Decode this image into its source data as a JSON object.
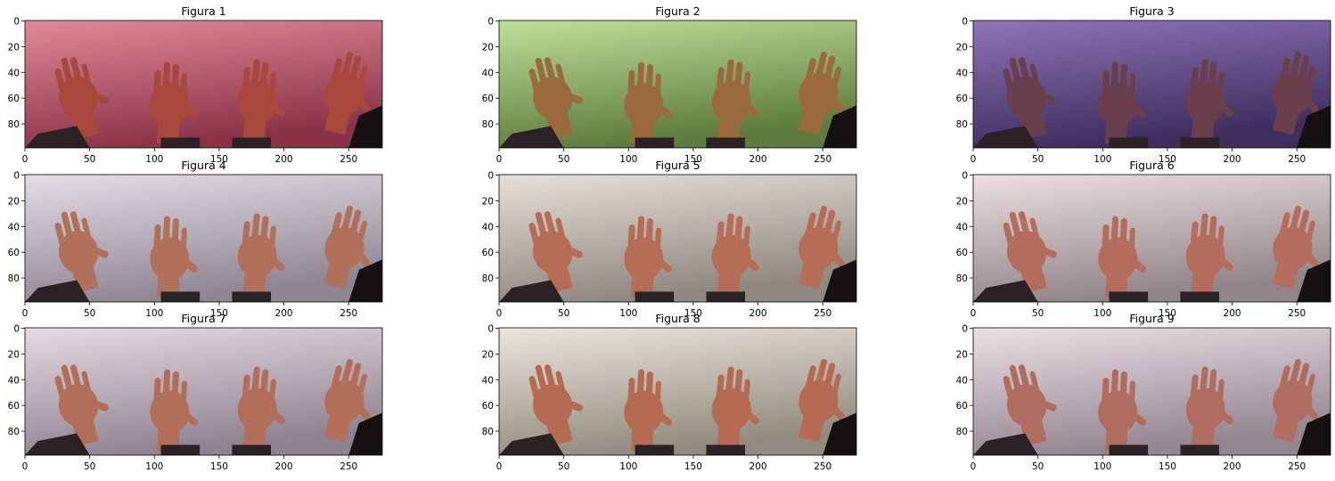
{
  "figure": {
    "panels": [
      {
        "title": "Figura 1",
        "tint": "#c0404f",
        "bg_top": "#e08a99",
        "bg_bottom": "#8a3348",
        "hand": "#a8473b"
      },
      {
        "title": "Figura 2",
        "tint": "#9ccc60",
        "bg_top": "#bfe09a",
        "bg_bottom": "#5e7a3c",
        "hand": "#9a6a3c"
      },
      {
        "title": "Figura 3",
        "tint": "#6a4a9a",
        "bg_top": "#8f74b8",
        "bg_bottom": "#3e2e5e",
        "hand": "#6a3e4a"
      },
      {
        "title": "Figura 4",
        "tint": "#d8ccd8",
        "bg_top": "#e4dde6",
        "bg_bottom": "#8f8693",
        "hand": "#b0705a"
      },
      {
        "title": "Figura 5",
        "tint": "#ddd3cc",
        "bg_top": "#e8e0d8",
        "bg_bottom": "#8f8780",
        "hand": "#b56e55"
      },
      {
        "title": "Figura 6",
        "tint": "#e2cfd2",
        "bg_top": "#ecdfe2",
        "bg_bottom": "#928589",
        "hand": "#b46c5c"
      },
      {
        "title": "Figura 7",
        "tint": "#d9ccd6",
        "bg_top": "#e6dbe4",
        "bg_bottom": "#8e8390",
        "hand": "#b26e58"
      },
      {
        "title": "Figura 8",
        "tint": "#dfd8cc",
        "bg_top": "#ebe6dc",
        "bg_bottom": "#938b80",
        "hand": "#b46b52"
      },
      {
        "title": "Figura 9",
        "tint": "#e0d2d8",
        "bg_top": "#ece0e6",
        "bg_bottom": "#938690",
        "hand": "#b06c5e"
      }
    ],
    "x_ticks": [
      "0",
      "50",
      "100",
      "150",
      "200",
      "250"
    ],
    "y_ticks": [
      "0",
      "20",
      "40",
      "60",
      "80"
    ],
    "x_range": [
      0,
      276
    ],
    "y_range": [
      0,
      99
    ]
  }
}
